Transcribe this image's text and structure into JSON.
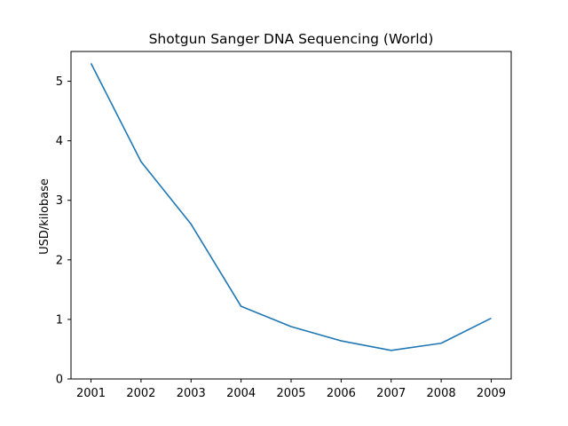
{
  "chart_data": {
    "type": "line",
    "title": "Shotgun Sanger DNA Sequencing (World)",
    "xlabel": "",
    "ylabel": "USD/kilobase",
    "x": [
      2001,
      2002,
      2003,
      2004,
      2005,
      2006,
      2007,
      2008,
      2009
    ],
    "series": [
      {
        "values": [
          5.3,
          3.65,
          2.6,
          1.22,
          0.88,
          0.64,
          0.48,
          0.6,
          1.02
        ]
      }
    ],
    "xticks": [
      "2001",
      "2002",
      "2003",
      "2004",
      "2005",
      "2006",
      "2007",
      "2008",
      "2009"
    ],
    "yticks": [
      "0",
      "1",
      "2",
      "3",
      "4",
      "5"
    ],
    "xlim": [
      2000.6,
      2009.4
    ],
    "ylim": [
      0,
      5.5
    ],
    "grid": false,
    "line_color": "#1f77b4"
  }
}
